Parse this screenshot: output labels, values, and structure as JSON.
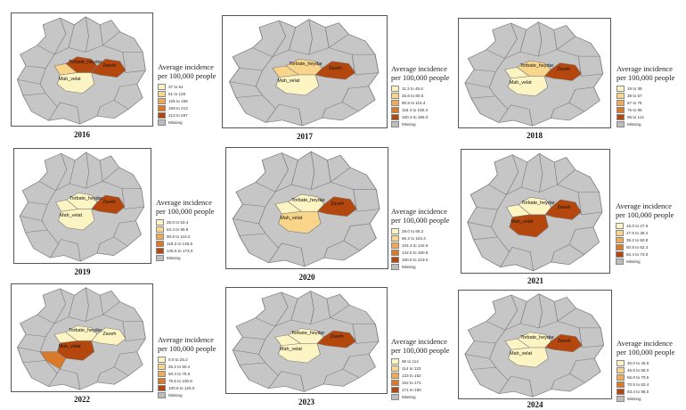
{
  "legend_title_line1": "Average incidence",
  "legend_title_line2": "per 100,000 people",
  "colors": {
    "background_region": "#c6c6c6",
    "region_border": "#7a7a7a",
    "missing": "#bdbdbd",
    "scale": [
      "#fdf4c4",
      "#f8d58a",
      "#eeaa55",
      "#d97a2a",
      "#b4470e"
    ]
  },
  "region_labels": {
    "torbat": "Torbate_heydar",
    "zaveh": "Zaveh",
    "mah": "Mah_velat"
  },
  "panels": [
    {
      "year": "2016",
      "legend": [
        "37 to 61",
        "61 to 125",
        "125 to 159",
        "159 to 213",
        "213 to 287",
        "Missing"
      ],
      "fills": {
        "torbat": 4,
        "zaveh": 4,
        "mah": 0,
        "center": 1,
        "left": 0
      },
      "show_left": false,
      "show_torbat_fill": true
    },
    {
      "year": "2017",
      "legend": [
        "11.3 to 45.6",
        "45.6 to 80.5",
        "80.5 to 115.4",
        "115.4 to 150.3",
        "150.3 to 185.0",
        "Missing"
      ],
      "fills": {
        "torbat": 1,
        "zaveh": 4,
        "mah": 0,
        "center": 1,
        "left": 0
      },
      "show_left": false,
      "show_torbat_fill": true
    },
    {
      "year": "2018",
      "legend": [
        "19 to 38",
        "38 to 57",
        "57 to 76",
        "76 to 95",
        "95 to 114",
        "Missing"
      ],
      "fills": {
        "torbat": 1,
        "zaveh": 4,
        "mah": 0,
        "center": 0,
        "left": 0
      },
      "show_left": false,
      "show_torbat_fill": true
    },
    {
      "year": "2019",
      "legend": [
        "26.0 to 53.4",
        "53.4 to 90.8",
        "90.8 to 118.2",
        "118.2 to 145.6",
        "145.6 to 173.0",
        "Missing"
      ],
      "fills": {
        "torbat": 0,
        "zaveh": 4,
        "mah": 0,
        "center": 0,
        "left": 0
      },
      "show_left": false,
      "show_torbat_fill": true
    },
    {
      "year": "2020",
      "legend": [
        "28.0 to 66.2",
        "66.2 to 104.4",
        "104.4 to 142.6",
        "142.6 to 180.8",
        "180.8 to 219.0",
        "Missing"
      ],
      "fills": {
        "torbat": 0,
        "zaveh": 4,
        "mah": 1,
        "center": 0,
        "left": 0
      },
      "show_left": false,
      "show_torbat_fill": true
    },
    {
      "year": "2021",
      "legend": [
        "15.0 to 27.6",
        "27.6 to 39.2",
        "39.2 to 50.8",
        "50.8 to 62.4",
        "62.4 to 74.0",
        "Missing"
      ],
      "fills": {
        "torbat": 0,
        "zaveh": 4,
        "mah": 4,
        "center": 0,
        "left": 0
      },
      "show_left": false,
      "show_torbat_fill": true
    },
    {
      "year": "2022",
      "legend": [
        "0.0 to 25.2",
        "25.2 to 50.4",
        "50.4 to 75.6",
        "75.6 to 100.8",
        "100.8 to 126.0",
        "Missing"
      ],
      "fills": {
        "torbat": 0,
        "zaveh": 0,
        "mah": 4,
        "center": 0,
        "left": 3
      },
      "show_left": true,
      "show_torbat_fill": true
    },
    {
      "year": "2023",
      "legend": [
        "96 to 114",
        "114 to 133",
        "133 to 152",
        "152 to 171",
        "171 to 190",
        "Missing"
      ],
      "fills": {
        "torbat": 0,
        "zaveh": 4,
        "mah": 0,
        "center": 0,
        "left": 0
      },
      "show_left": false,
      "show_torbat_fill": true
    },
    {
      "year": "2024",
      "legend": [
        "30.0 to 45.5",
        "45.5 to 56.0",
        "56.0 to 70.5",
        "70.5 to 83.4",
        "83.4 to 95.0",
        "Missing"
      ],
      "fills": {
        "torbat": 0,
        "zaveh": 4,
        "mah": 0,
        "center": 0,
        "left": 0
      },
      "show_left": false,
      "show_torbat_fill": true
    }
  ]
}
